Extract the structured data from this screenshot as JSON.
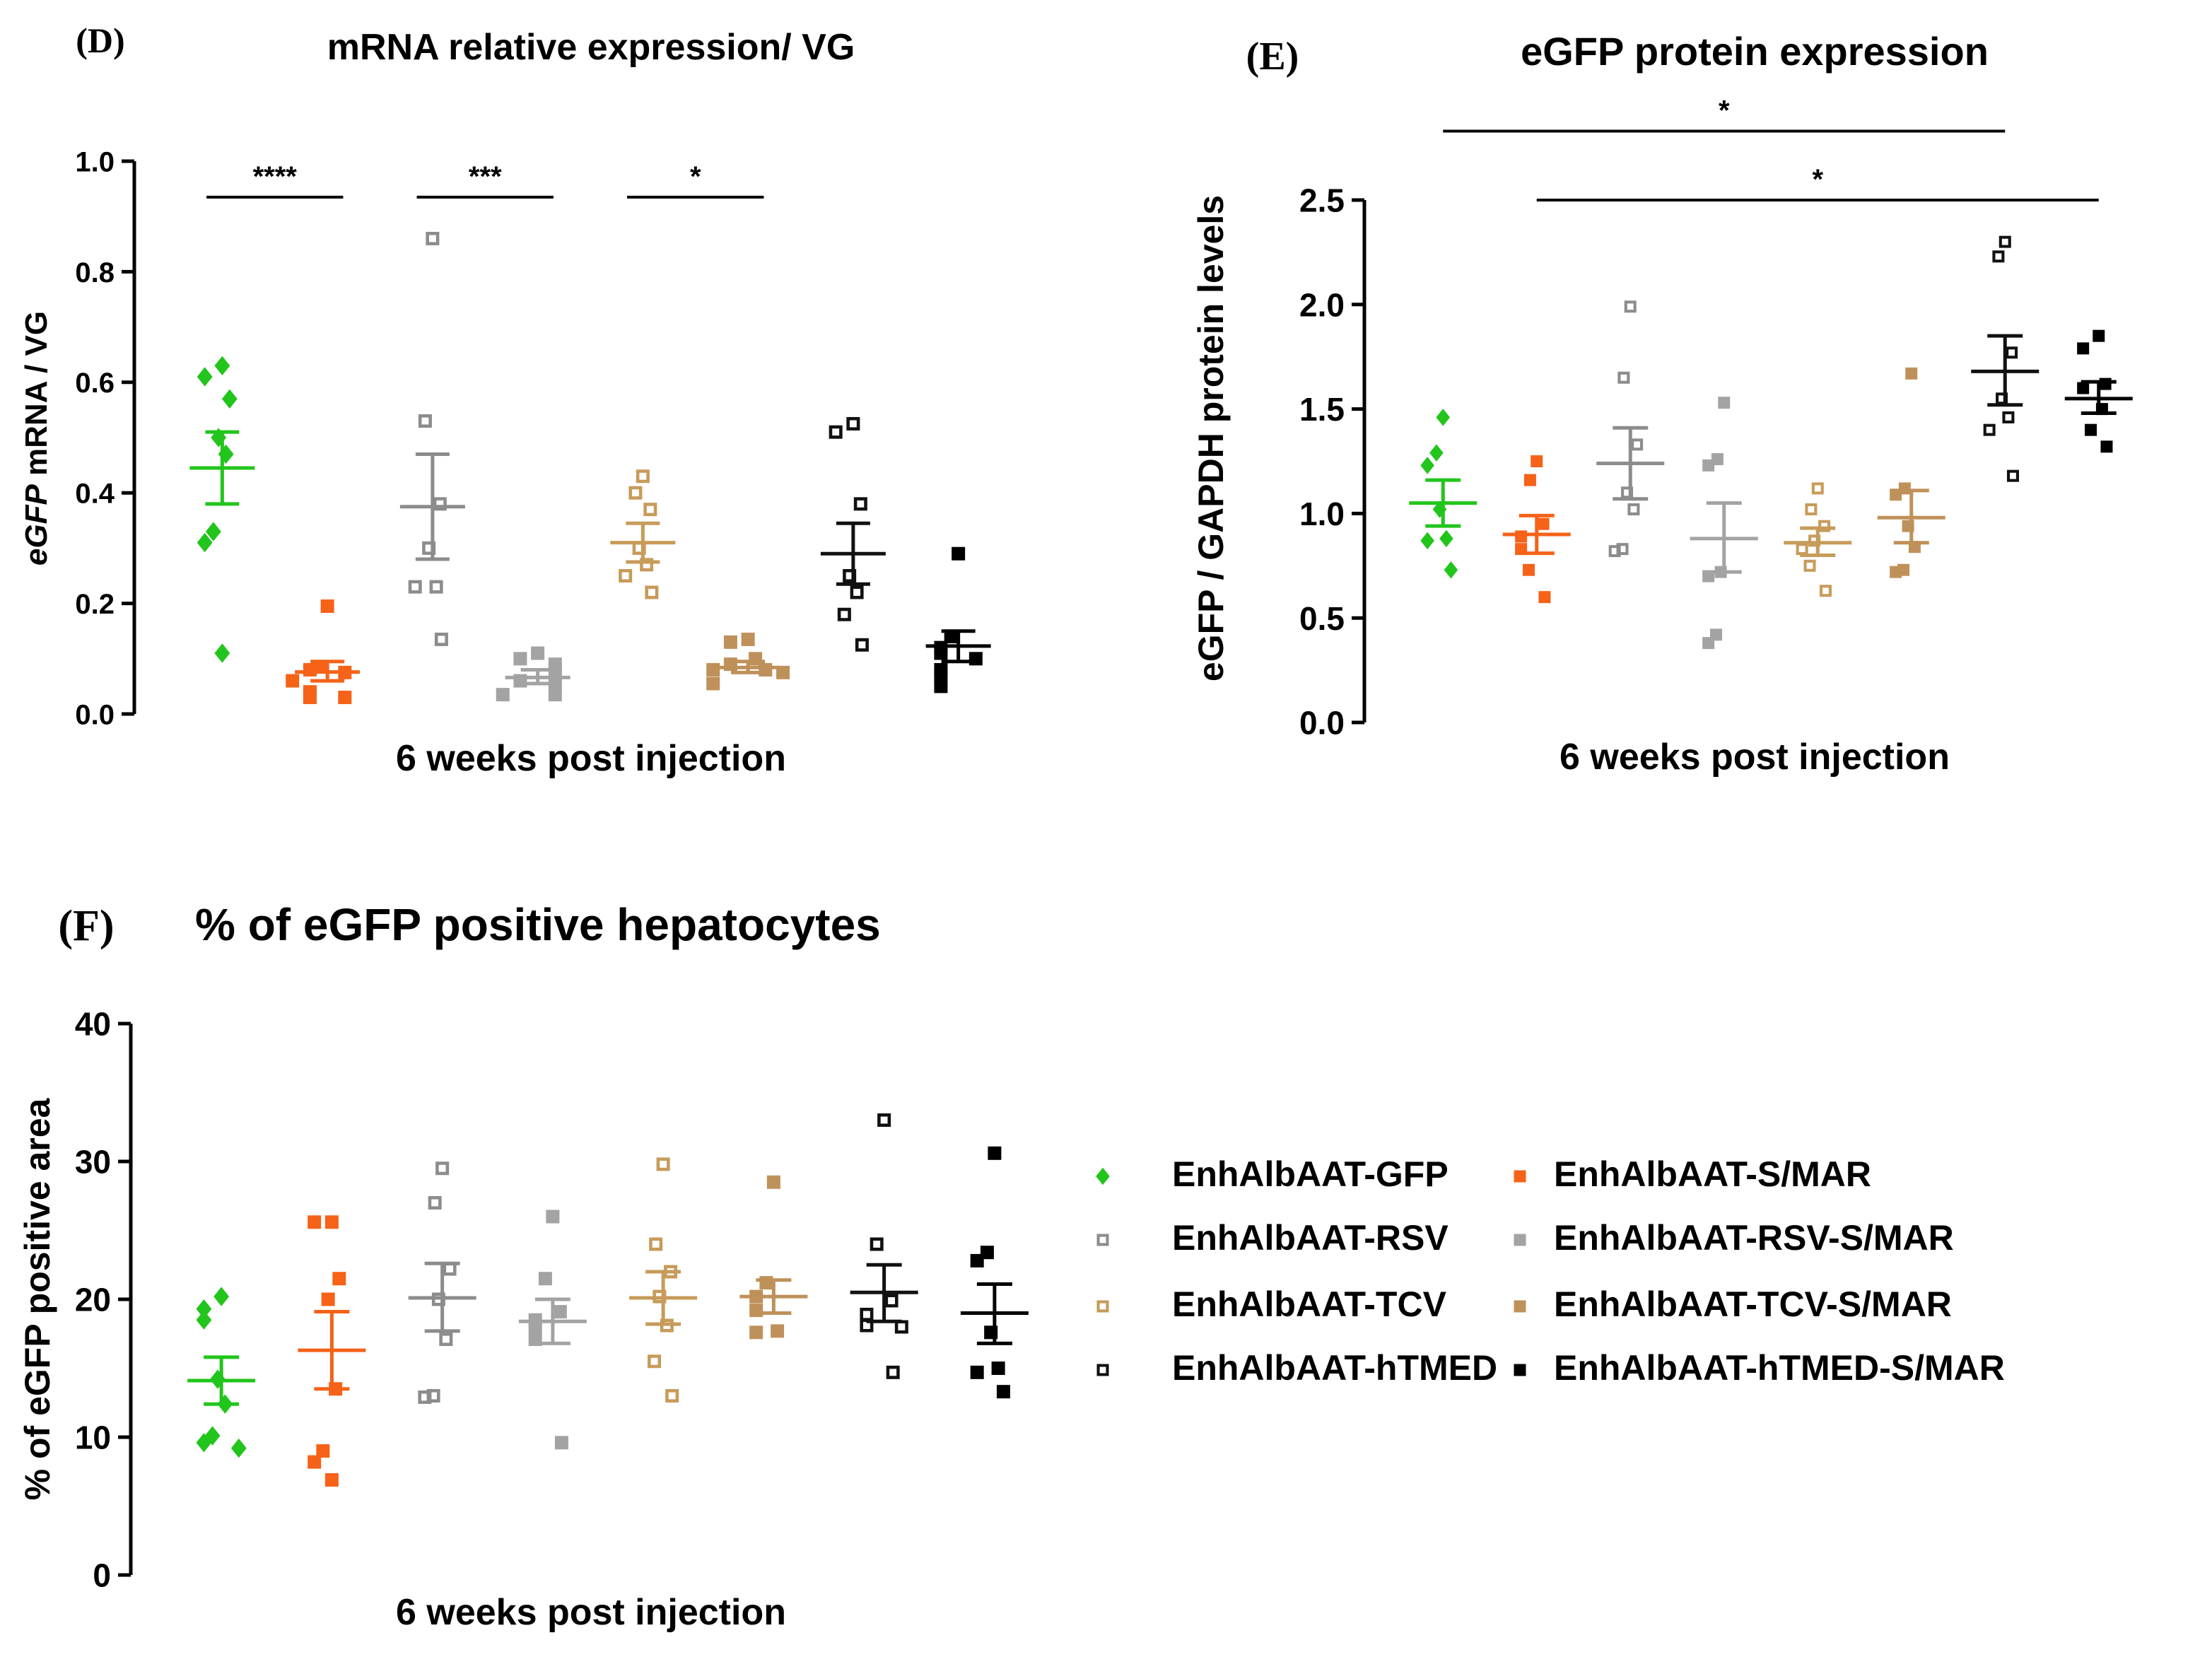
{
  "legend": {
    "position": "right of panel F",
    "entries": [
      {
        "name": "EnhAlbAAT-GFP",
        "color": "#22c51b",
        "marker": "diamond",
        "filled": true
      },
      {
        "name": "EnhAlbAAT-S/MAR",
        "color": "#f56218",
        "marker": "square",
        "filled": true
      },
      {
        "name": "EnhAlbAAT-RSV",
        "color": "#8c8c8c",
        "marker": "square",
        "filled": false
      },
      {
        "name": "EnhAlbAAT-RSV-S/MAR",
        "color": "#a3a3a3",
        "marker": "square",
        "filled": true
      },
      {
        "name": "EnhAlbAAT-TCV",
        "color": "#c79b5a",
        "marker": "square",
        "filled": false
      },
      {
        "name": "EnhAlbAAT-TCV-S/MAR",
        "color": "#bf915a",
        "marker": "square",
        "filled": true
      },
      {
        "name": "EnhAlbAAT-hTMED",
        "color": "#111111",
        "marker": "square",
        "filled": false
      },
      {
        "name": "EnhAlbAAT-hTMED-S/MAR",
        "color": "#000000",
        "marker": "square",
        "filled": true
      }
    ]
  },
  "chart_data": [
    {
      "panel": "(D)",
      "type": "scatter",
      "title": "mRNA relative expression/ VG",
      "xlabel": "6 weeks post injection",
      "ylabel_italic": "eGFP",
      "ylabel": " mRNA / VG",
      "ylim": [
        0,
        1.0
      ],
      "yticks": [
        "0.0",
        "0.2",
        "0.4",
        "0.6",
        "0.8",
        "1.0"
      ],
      "groups": [
        {
          "name": "EnhAlbAAT-GFP",
          "mean": 0.445,
          "sem": [
            0.38,
            0.51
          ],
          "points": [
            0.63,
            0.61,
            0.57,
            0.5,
            0.47,
            0.33,
            0.31,
            0.11
          ]
        },
        {
          "name": "EnhAlbAAT-S/MAR",
          "mean": 0.076,
          "sem": [
            0.06,
            0.095
          ],
          "points": [
            0.195,
            0.085,
            0.08,
            0.075,
            0.06,
            0.04,
            0.03,
            0.03
          ]
        },
        {
          "name": "EnhAlbAAT-RSV",
          "mean": 0.375,
          "sem": [
            0.28,
            0.47
          ],
          "points": [
            0.86,
            0.53,
            0.38,
            0.3,
            0.23,
            0.23,
            0.135
          ]
        },
        {
          "name": "EnhAlbAAT-RSV-S/MAR",
          "mean": 0.066,
          "sem": [
            0.055,
            0.08
          ],
          "points": [
            0.11,
            0.1,
            0.09,
            0.08,
            0.06,
            0.055,
            0.035,
            0.035
          ]
        },
        {
          "name": "EnhAlbAAT-TCV",
          "mean": 0.31,
          "sem": [
            0.275,
            0.345
          ],
          "points": [
            0.43,
            0.4,
            0.37,
            0.3,
            0.27,
            0.25,
            0.22
          ]
        },
        {
          "name": "EnhAlbAAT-TCV-S/MAR",
          "mean": 0.084,
          "sem": [
            0.075,
            0.095
          ],
          "points": [
            0.135,
            0.13,
            0.1,
            0.09,
            0.08,
            0.08,
            0.075,
            0.055
          ]
        },
        {
          "name": "EnhAlbAAT-hTMED",
          "mean": 0.29,
          "sem": [
            0.235,
            0.345
          ],
          "points": [
            0.525,
            0.51,
            0.38,
            0.25,
            0.22,
            0.18,
            0.125
          ]
        },
        {
          "name": "EnhAlbAAT-hTMED-S/MAR",
          "mean": 0.123,
          "sem": [
            0.095,
            0.15
          ],
          "points": [
            0.29,
            0.14,
            0.12,
            0.11,
            0.1,
            0.08,
            0.07,
            0.05
          ]
        }
      ],
      "significance": [
        {
          "label": "****",
          "from": 0,
          "to": 1,
          "y": 0.935
        },
        {
          "label": "***",
          "from": 2,
          "to": 3,
          "y": 0.935
        },
        {
          "label": "*",
          "from": 4,
          "to": 5,
          "y": 0.935
        }
      ]
    },
    {
      "panel": "(E)",
      "type": "scatter",
      "title": "eGFP protein expression",
      "xlabel": "6 weeks post injection",
      "ylabel": "eGFP / GAPDH protein levels",
      "ylim": [
        0,
        2.5
      ],
      "yticks": [
        "0.0",
        "0.5",
        "1.0",
        "1.5",
        "2.0",
        "2.5"
      ],
      "groups": [
        {
          "name": "EnhAlbAAT-GFP",
          "mean": 1.05,
          "sem": [
            0.94,
            1.16
          ],
          "points": [
            1.46,
            1.29,
            1.23,
            1.02,
            0.88,
            0.87,
            0.73
          ]
        },
        {
          "name": "EnhAlbAAT-S/MAR",
          "mean": 0.9,
          "sem": [
            0.81,
            0.99
          ],
          "points": [
            1.25,
            1.16,
            0.95,
            0.89,
            0.83,
            0.73,
            0.6
          ]
        },
        {
          "name": "EnhAlbAAT-RSV",
          "mean": 1.24,
          "sem": [
            1.07,
            1.41
          ],
          "points": [
            1.99,
            1.65,
            1.33,
            1.1,
            1.02,
            0.83,
            0.82
          ]
        },
        {
          "name": "EnhAlbAAT-RSV-S/MAR",
          "mean": 0.88,
          "sem": [
            0.72,
            1.05
          ],
          "points": [
            1.53,
            1.26,
            1.23,
            0.72,
            0.7,
            0.42,
            0.38
          ]
        },
        {
          "name": "EnhAlbAAT-TCV",
          "mean": 0.86,
          "sem": [
            0.8,
            0.93
          ],
          "points": [
            1.12,
            1.02,
            0.94,
            0.87,
            0.83,
            0.75,
            0.63
          ]
        },
        {
          "name": "EnhAlbAAT-TCV-S/MAR",
          "mean": 0.98,
          "sem": [
            0.86,
            1.11
          ],
          "points": [
            1.67,
            1.12,
            1.09,
            0.94,
            0.84,
            0.73,
            0.72
          ]
        },
        {
          "name": "EnhAlbAAT-hTMED",
          "mean": 1.68,
          "sem": [
            1.52,
            1.85
          ],
          "points": [
            2.3,
            2.23,
            1.77,
            1.55,
            1.46,
            1.4,
            1.18
          ]
        },
        {
          "name": "EnhAlbAAT-hTMED-S/MAR",
          "mean": 1.55,
          "sem": [
            1.48,
            1.63
          ],
          "points": [
            1.85,
            1.79,
            1.62,
            1.6,
            1.5,
            1.4,
            1.32
          ]
        }
      ],
      "significance": [
        {
          "label": "*",
          "from": 0,
          "to": 6,
          "y": 2.83
        },
        {
          "label": "*",
          "from": 1,
          "to": 7,
          "y": 2.5
        }
      ]
    },
    {
      "panel": "(F)",
      "type": "scatter",
      "title": "% of eGFP positive hepatocytes",
      "xlabel": "6 weeks post injection",
      "ylabel": "% of eGFP positive area",
      "ylim": [
        0,
        40
      ],
      "yticks": [
        "0",
        "10",
        "20",
        "30",
        "40"
      ],
      "groups": [
        {
          "name": "EnhAlbAAT-GFP",
          "mean": 14.1,
          "sem": [
            12.4,
            15.8
          ],
          "points": [
            20.2,
            19.3,
            18.5,
            14.2,
            12.4,
            10.1,
            9.6,
            9.2
          ]
        },
        {
          "name": "EnhAlbAAT-S/MAR",
          "mean": 16.3,
          "sem": [
            13.5,
            19.1
          ],
          "points": [
            25.6,
            25.6,
            21.5,
            20.0,
            13.5,
            9.0,
            8.2,
            6.9
          ]
        },
        {
          "name": "EnhAlbAAT-RSV",
          "mean": 20.1,
          "sem": [
            17.7,
            22.6
          ],
          "points": [
            29.5,
            27.0,
            22.2,
            20.0,
            17.1,
            13.0,
            12.9
          ]
        },
        {
          "name": "EnhAlbAAT-RSV-S/MAR",
          "mean": 18.4,
          "sem": [
            16.8,
            20.0
          ],
          "points": [
            26.0,
            21.5,
            19.1,
            18.5,
            18.0,
            17.1,
            9.6
          ]
        },
        {
          "name": "EnhAlbAAT-TCV",
          "mean": 20.1,
          "sem": [
            18.2,
            22.0
          ],
          "points": [
            29.8,
            24.0,
            22.0,
            20.2,
            18.1,
            15.5,
            13.0
          ]
        },
        {
          "name": "EnhAlbAAT-TCV-S/MAR",
          "mean": 20.2,
          "sem": [
            19.0,
            21.4
          ],
          "points": [
            28.5,
            21.2,
            20.2,
            19.2,
            17.7,
            17.6
          ]
        },
        {
          "name": "EnhAlbAAT-hTMED",
          "mean": 20.5,
          "sem": [
            18.4,
            22.5
          ],
          "points": [
            33.0,
            24.0,
            19.9,
            18.9,
            18.1,
            18.0,
            14.7
          ]
        },
        {
          "name": "EnhAlbAAT-hTMED-S/MAR",
          "mean": 19.0,
          "sem": [
            16.8,
            21.1
          ],
          "points": [
            30.6,
            23.4,
            22.8,
            17.6,
            15.0,
            14.7,
            13.3
          ]
        }
      ],
      "significance": []
    }
  ]
}
